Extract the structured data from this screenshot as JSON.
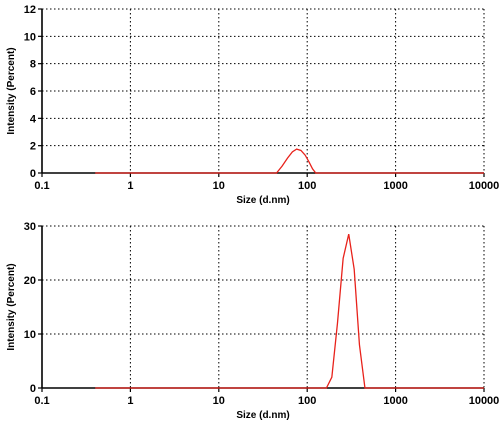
{
  "chart_data": [
    {
      "type": "line",
      "title": "",
      "xlabel": "Size (d.nm)",
      "ylabel": "Intensity (Percent)",
      "x_scale": "log",
      "xlim": [
        0.1,
        10000
      ],
      "ylim": [
        0,
        12
      ],
      "x_ticks": [
        "0.1",
        "1",
        "10",
        "100",
        "1000",
        "10000"
      ],
      "y_ticks": [
        "0",
        "2",
        "4",
        "6",
        "8",
        "10",
        "12"
      ],
      "grid": true,
      "series": [
        {
          "color": "#e8221b",
          "x": [
            0.4,
            30,
            45,
            52,
            60,
            68,
            76,
            85,
            95,
            105,
            115,
            125,
            140,
            200,
            10000
          ],
          "y": [
            0,
            0,
            0,
            0.5,
            1.1,
            1.55,
            1.75,
            1.65,
            1.3,
            0.8,
            0.3,
            0,
            0,
            0,
            0
          ]
        }
      ]
    },
    {
      "type": "line",
      "title": "",
      "xlabel": "Size (d.nm)",
      "ylabel": "Intensity (Percent)",
      "x_scale": "log",
      "xlim": [
        0.1,
        10000
      ],
      "ylim": [
        0,
        30
      ],
      "x_ticks": [
        "0.1",
        "1",
        "10",
        "100",
        "1000",
        "10000"
      ],
      "y_ticks": [
        "0",
        "10",
        "20",
        "30"
      ],
      "grid": true,
      "series": [
        {
          "color": "#e8221b",
          "x": [
            0.4,
            100,
            165,
            190,
            220,
            255,
            295,
            340,
            390,
            450,
            10000
          ],
          "y": [
            0,
            0,
            0,
            2,
            12,
            24,
            28.5,
            22,
            8,
            0,
            0
          ]
        }
      ]
    }
  ]
}
